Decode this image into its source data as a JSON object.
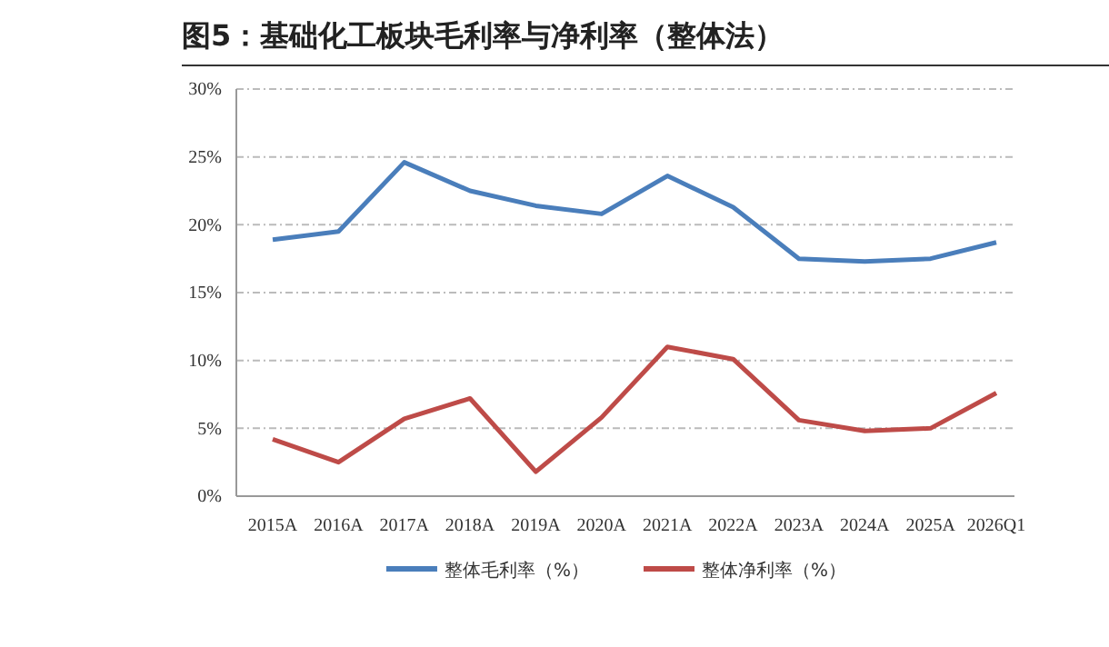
{
  "chart_data": {
    "type": "line",
    "title": "图5：基础化工板块毛利率与净利率（整体法）",
    "categories": [
      "2015A",
      "2016A",
      "2017A",
      "2018A",
      "2019A",
      "2020A",
      "2021A",
      "2022A",
      "2023A",
      "2024A",
      "2025A",
      "2026Q1"
    ],
    "series": [
      {
        "name": "整体毛利率（%）",
        "color": "#4a7ebb",
        "values": [
          18.9,
          19.5,
          24.6,
          22.5,
          21.4,
          20.8,
          23.6,
          21.3,
          17.5,
          17.3,
          17.5,
          18.7
        ]
      },
      {
        "name": "整体净利率（%）",
        "color": "#be4b48",
        "values": [
          4.2,
          2.5,
          5.7,
          7.2,
          1.8,
          5.8,
          11.0,
          10.1,
          5.6,
          4.8,
          5.0,
          7.6
        ]
      }
    ],
    "ylim": [
      0,
      30
    ],
    "yticks": [
      {
        "value": 0,
        "label": "0%"
      },
      {
        "value": 5,
        "label": "5%"
      },
      {
        "value": 10,
        "label": "10%"
      },
      {
        "value": 15,
        "label": "15%"
      },
      {
        "value": 20,
        "label": "20%"
      },
      {
        "value": 25,
        "label": "25%"
      },
      {
        "value": 30,
        "label": "30%"
      }
    ],
    "grid": "y",
    "legend": "bottom",
    "marker": "none",
    "line_style": "solid"
  }
}
